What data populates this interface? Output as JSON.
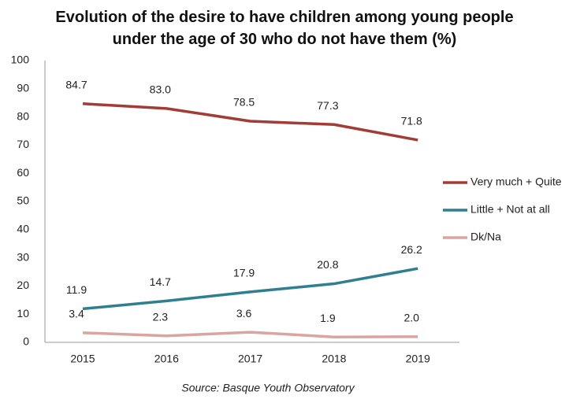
{
  "chart_data": {
    "type": "line",
    "title": "Evolution of the desire to have children among young people under the age of 30 who do not have them (%)",
    "source": "Source: Basque Youth Observatory",
    "categories": [
      "2015",
      "2016",
      "2017",
      "2018",
      "2019"
    ],
    "series": [
      {
        "name": "Very much + Quite",
        "color": "#a33b37",
        "values": [
          84.7,
          83.0,
          78.5,
          77.3,
          71.8
        ],
        "value_labels": [
          "84.7",
          "83.0",
          "78.5",
          "77.3",
          "71.8"
        ]
      },
      {
        "name": "Little + Not at all",
        "color": "#2f7f90",
        "values": [
          11.9,
          14.7,
          17.9,
          20.8,
          26.2
        ],
        "value_labels": [
          "11.9",
          "14.7",
          "17.9",
          "20.8",
          "26.2"
        ]
      },
      {
        "name": "Dk/Na",
        "color": "#d9a5a1",
        "values": [
          3.4,
          2.3,
          3.6,
          1.9,
          2.0
        ],
        "value_labels": [
          "3.4",
          "2.3",
          "3.6",
          "1.9",
          "2.0"
        ]
      }
    ],
    "ylim": [
      0,
      100
    ],
    "yticks": [
      0,
      10,
      20,
      30,
      40,
      50,
      60,
      70,
      80,
      90,
      100
    ],
    "grid": false,
    "legend": "right"
  }
}
